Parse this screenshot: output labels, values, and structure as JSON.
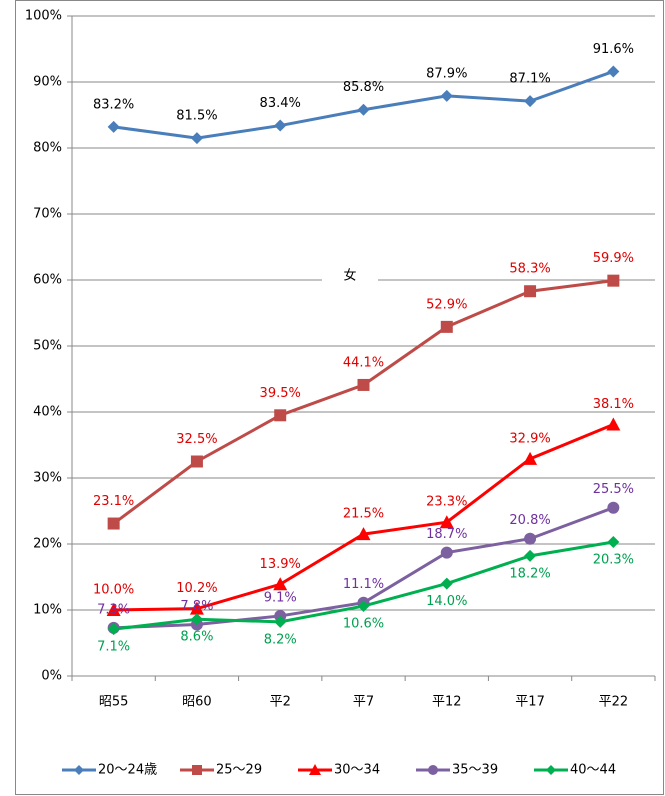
{
  "chart_data": {
    "type": "line",
    "annotation": "女",
    "categories": [
      "昭55",
      "昭60",
      "平2",
      "平7",
      "平12",
      "平17",
      "平22"
    ],
    "ylim": [
      0,
      100
    ],
    "yticks": [
      {
        "value": 0,
        "label": "0%"
      },
      {
        "value": 10,
        "label": "10%"
      },
      {
        "value": 20,
        "label": "20%"
      },
      {
        "value": 30,
        "label": "30%"
      },
      {
        "value": 40,
        "label": "40%"
      },
      {
        "value": 50,
        "label": "50%"
      },
      {
        "value": 60,
        "label": "60%"
      },
      {
        "value": 70,
        "label": "70%"
      },
      {
        "value": 80,
        "label": "80%"
      },
      {
        "value": 90,
        "label": "90%"
      },
      {
        "value": 100,
        "label": "100%"
      }
    ],
    "grid": true,
    "legend": "bottom",
    "series": [
      {
        "name": "20～24歳",
        "color": "#4a7ebb",
        "marker": "diamond",
        "label_color": "#000000",
        "values": [
          83.2,
          81.5,
          83.4,
          85.8,
          87.9,
          87.1,
          91.6
        ],
        "value_labels": [
          "83.2%",
          "81.5%",
          "83.4%",
          "85.8%",
          "87.9%",
          "87.1%",
          "91.6%"
        ]
      },
      {
        "name": "25～29",
        "color": "#be4b48",
        "marker": "square",
        "label_color": "#e00000",
        "values": [
          23.1,
          32.5,
          39.5,
          44.1,
          52.9,
          58.3,
          59.9
        ],
        "value_labels": [
          "23.1%",
          "32.5%",
          "39.5%",
          "44.1%",
          "52.9%",
          "58.3%",
          "59.9%"
        ]
      },
      {
        "name": "30～34",
        "color": "#ff0000",
        "marker": "triangle",
        "label_color": "#e00000",
        "values": [
          10.0,
          10.2,
          13.9,
          21.5,
          23.3,
          32.9,
          38.1
        ],
        "value_labels": [
          "10.0%",
          "10.2%",
          "13.9%",
          "21.5%",
          "23.3%",
          "32.9%",
          "38.1%"
        ]
      },
      {
        "name": "35～39",
        "color": "#7d60a0",
        "marker": "circle",
        "label_color": "#7030a0",
        "values": [
          7.3,
          7.8,
          9.1,
          11.1,
          18.7,
          20.8,
          25.5
        ],
        "value_labels": [
          "7.3%",
          "7.8%",
          "9.1%",
          "11.1%",
          "18.7%",
          "20.8%",
          "25.5%"
        ]
      },
      {
        "name": "40～44",
        "color": "#00b050",
        "marker": "diamond",
        "label_color": "#00a050",
        "values": [
          7.1,
          8.6,
          8.2,
          10.6,
          14.0,
          18.2,
          20.3
        ],
        "value_labels": [
          "7.1%",
          "8.6%",
          "8.2%",
          "10.6%",
          "14.0%",
          "18.2%",
          "20.3%"
        ]
      }
    ]
  }
}
